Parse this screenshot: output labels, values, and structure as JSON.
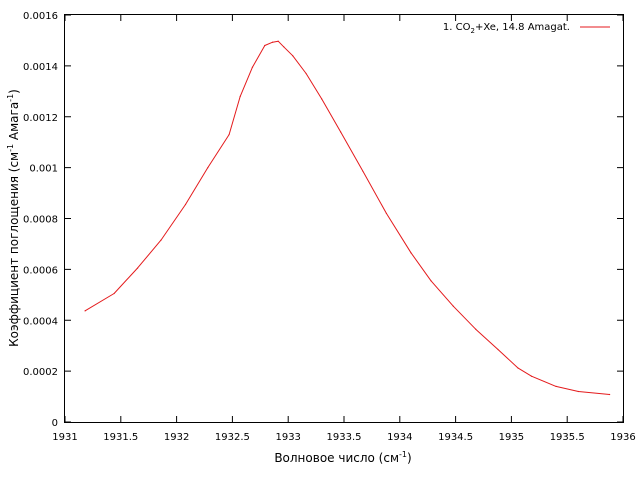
{
  "chart_data": {
    "type": "line",
    "xlabel": {
      "main": "Волновое число (см",
      "sup": "-1",
      "tail": ")"
    },
    "ylabel": {
      "main": "Коэффициент поглощения (см",
      "sup1": "-1",
      "mid": " Амага",
      "sup2": "-1",
      "tail": ")"
    },
    "xlim": [
      1931,
      1936
    ],
    "ylim": [
      0,
      0.0016
    ],
    "xticks": [
      "1931",
      "1931.5",
      "1932",
      "1932.5",
      "1933",
      "1933.5",
      "1934",
      "1934.5",
      "1935",
      "1935.5",
      "1936"
    ],
    "yticks": [
      "0",
      "0.0002",
      "0.0004",
      "0.0006",
      "0.0008",
      "0.001",
      "0.0012",
      "0.0014",
      "0.0016"
    ],
    "grid": false,
    "legend_position": "top-right",
    "series": [
      {
        "label_prefix": "1. CO",
        "label_sub": "2",
        "label_suffix": "+Xe, 14.8 Amagat.",
        "color": "#e41a1c",
        "x": [
          1931.18,
          1931.44,
          1931.65,
          1931.86,
          1932.08,
          1932.28,
          1932.47,
          1932.57,
          1932.68,
          1932.79,
          1932.86,
          1932.91,
          1932.96,
          1933.04,
          1933.16,
          1933.3,
          1933.47,
          1933.67,
          1933.88,
          1934.1,
          1934.28,
          1934.48,
          1934.68,
          1934.88,
          1935.06,
          1935.18,
          1935.4,
          1935.6,
          1935.88
        ],
        "y": [
          0.000437,
          0.000505,
          0.000605,
          0.000715,
          0.000855,
          0.001,
          0.00113,
          0.00128,
          0.001395,
          0.00148,
          0.001493,
          0.001497,
          0.001475,
          0.00144,
          0.00137,
          0.00127,
          0.00114,
          0.000985,
          0.00082,
          0.000665,
          0.000555,
          0.000455,
          0.000365,
          0.000285,
          0.000212,
          0.00018,
          0.00014,
          0.00012,
          0.000108
        ]
      }
    ]
  }
}
